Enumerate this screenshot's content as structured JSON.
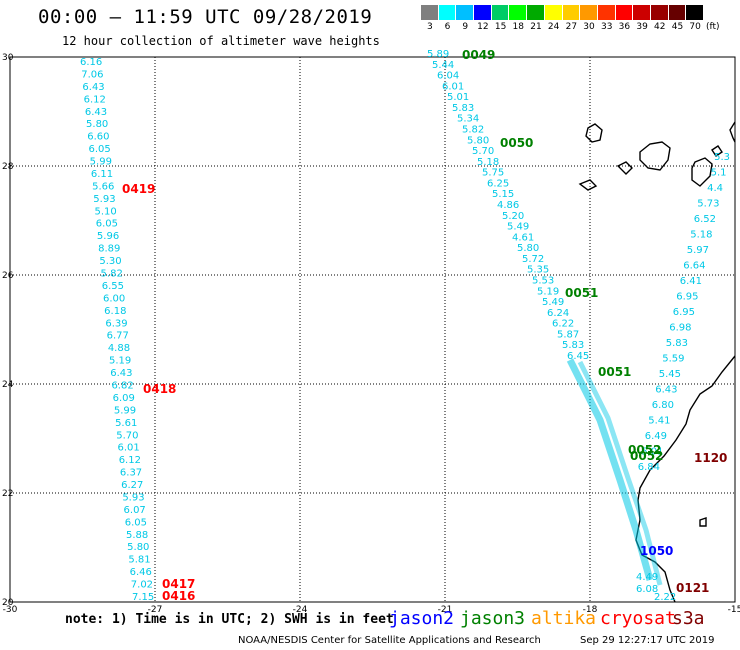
{
  "header": {
    "title": "00:00 – 11:59 UTC 09/28/2019",
    "subtitle": "12 hour collection of altimeter wave heights"
  },
  "color_scale": {
    "labels": [
      "3",
      "6",
      "9",
      "12",
      "15",
      "18",
      "21",
      "24",
      "27",
      "30",
      "33",
      "36",
      "39",
      "42",
      "45",
      "70"
    ],
    "unit": "(ft)",
    "colors": [
      "#7f7f7f",
      "#00ffff",
      "#00bfff",
      "#0000ff",
      "#00cc66",
      "#00ff00",
      "#00aa00",
      "#ffff00",
      "#ffcc00",
      "#ff9900",
      "#ff3300",
      "#ff0000",
      "#cc0000",
      "#990000",
      "#660000",
      "#000000"
    ]
  },
  "map": {
    "lon_ticks": [
      "-30",
      "-27",
      "-24",
      "-21",
      "-18",
      "-15"
    ],
    "lat_ticks": [
      "30",
      "28",
      "26",
      "24",
      "22",
      "20"
    ],
    "track_color": "#00c8e6",
    "labels_west": [
      "6.16",
      "7.06",
      "6.43",
      "6.12",
      "6.43",
      "5.80",
      "6.60",
      "6.05",
      "5.99",
      "6.11",
      "5.66",
      "5.93",
      "5.10",
      "6.05",
      "5.96",
      "8.89",
      "5.30",
      "5.82",
      "6.55",
      "6.00",
      "6.18",
      "6.39",
      "6.77",
      "4.88",
      "5.19",
      "6.43",
      "6.82",
      "6.09",
      "5.99",
      "5.61",
      "5.70",
      "6.01",
      "6.12",
      "6.37",
      "6.27",
      "5.93",
      "6.07",
      "6.05",
      "5.88",
      "5.80",
      "5.81",
      "6.46",
      "7.02",
      "7.15"
    ],
    "labels_mid": [
      "5.89",
      "5.44",
      "6.04",
      "6.01",
      "5.01",
      "5.83",
      "5.34",
      "5.82",
      "5.80",
      "5.70",
      "5.18",
      "5.75",
      "6.25",
      "5.15",
      "4.86",
      "5.20",
      "5.49",
      "4.61",
      "5.80",
      "5.72",
      "5.35",
      "5.53",
      "5.19",
      "5.49",
      "6.24",
      "6.22",
      "5.87",
      "5.83",
      "6.45"
    ],
    "labels_east": [
      "5.3",
      "5.1",
      "4.4",
      "5.73",
      "6.52",
      "5.18",
      "5.97",
      "6.64",
      "6.41",
      "6.95",
      "6.95",
      "6.98",
      "5.83",
      "5.59",
      "5.45",
      "6.43",
      "6.80",
      "5.41",
      "6.49",
      "5.01",
      "6.84"
    ],
    "labels_south": [
      "4.49",
      "6.08",
      "2.22"
    ],
    "time_labels": [
      {
        "text": "0049",
        "color": "#008000"
      },
      {
        "text": "0050",
        "color": "#008000"
      },
      {
        "text": "0051",
        "color": "#008000"
      },
      {
        "text": "0051",
        "color": "#008000"
      },
      {
        "text": "0052",
        "color": "#008000"
      },
      {
        "text": "0052",
        "color": "#008000"
      },
      {
        "text": "0419",
        "color": "#ff0000"
      },
      {
        "text": "0418",
        "color": "#ff0000"
      },
      {
        "text": "0417",
        "color": "#ff0000"
      },
      {
        "text": "0416",
        "color": "#ff0000"
      },
      {
        "text": "1120",
        "color": "#800000"
      },
      {
        "text": "1050",
        "color": "#0000ff"
      },
      {
        "text": "0121",
        "color": "#800000"
      }
    ]
  },
  "footer": {
    "note": "note: 1) Time is in UTC; 2) SWH is in feet",
    "satellites": [
      {
        "name": "jason2",
        "color": "#0000ff"
      },
      {
        "name": "jason3",
        "color": "#008000"
      },
      {
        "name": "altika",
        "color": "#ff9900"
      },
      {
        "name": "cryosat",
        "color": "#ff0000"
      },
      {
        "name": "s3a",
        "color": "#800000"
      }
    ],
    "credit": "NOAA/NESDIS Center for Satellite Applications and Research",
    "timestamp": "Sep 29 12:27:17 UTC 2019"
  }
}
